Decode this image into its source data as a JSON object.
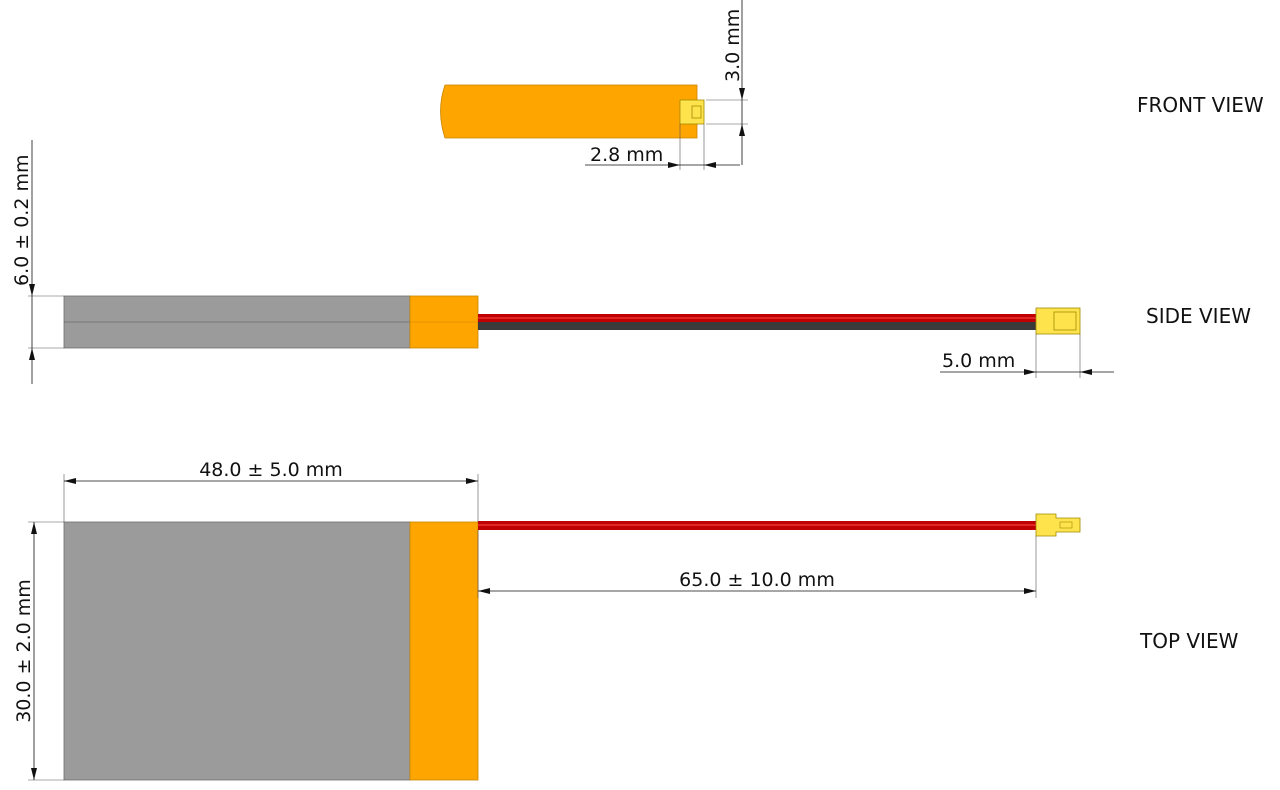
{
  "views": {
    "front": "FRONT VIEW",
    "side": "SIDE VIEW",
    "top": "TOP VIEW"
  },
  "dimensions": {
    "connector_height": "3.0 mm",
    "connector_width": "2.8 mm",
    "thickness": "6.0 ± 0.2 mm",
    "connector_length": "5.0 mm",
    "length": "48.0 ± 5.0 mm",
    "wire_length": "65.0 ± 10.0 mm",
    "width": "30.0 ± 2.0 mm"
  },
  "colors": {
    "cell_body": "#9b9b9b",
    "insulation": "#ffa500",
    "wire_red": "#c00000",
    "wire_black": "#3a3a3a",
    "connector": "#ffe34d"
  }
}
